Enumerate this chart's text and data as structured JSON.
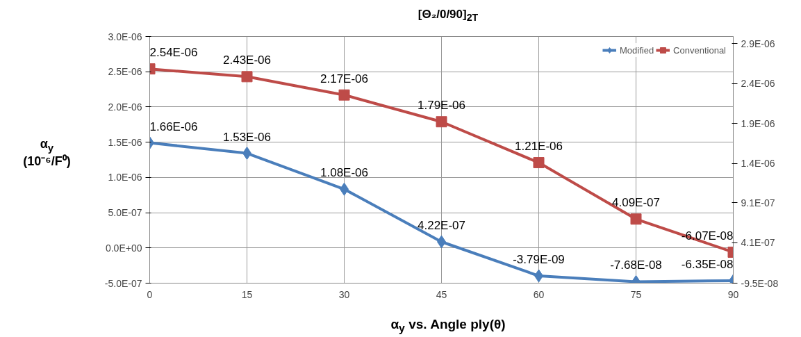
{
  "chart_data": {
    "type": "line",
    "title": "[Θ₂/0/90]$_{2T}$",
    "xlabel": "α$_{y}$ vs. Angle ply(θ)",
    "ylabel": "α$_{y}$\n(10⁻⁶/F⁰)",
    "x": [
      0,
      15,
      30,
      45,
      60,
      75,
      90
    ],
    "xlim": [
      0,
      90
    ],
    "xticks": [
      0,
      15,
      30,
      45,
      60,
      75,
      90
    ],
    "ylim": [
      -5e-07,
      3e-06
    ],
    "yticks": [
      {
        "value": -5e-07,
        "label": "-5.0E-07"
      },
      {
        "value": 0,
        "label": "0.0E+00"
      },
      {
        "value": 5e-07,
        "label": "5.0E-07"
      },
      {
        "value": 1e-06,
        "label": "1.0E-06"
      },
      {
        "value": 1.5e-06,
        "label": "1.5E-06"
      },
      {
        "value": 2e-06,
        "label": "2.0E-06"
      },
      {
        "value": 2.5e-06,
        "label": "2.5E-06"
      },
      {
        "value": 3e-06,
        "label": "3.0E-06"
      }
    ],
    "y2lim": [
      -9.5e-08,
      2.99e-06
    ],
    "y2ticks": [
      {
        "value": -9.5e-08,
        "label": "-9.5E-08"
      },
      {
        "value": 4.1e-07,
        "label": "4.1E-07"
      },
      {
        "value": 9.1e-07,
        "label": "9.1E-07"
      },
      {
        "value": 1.4e-06,
        "label": "1.4E-06"
      },
      {
        "value": 1.9e-06,
        "label": "1.9E-06"
      },
      {
        "value": 2.4e-06,
        "label": "2.4E-06"
      },
      {
        "value": 2.9e-06,
        "label": "2.9E-06"
      }
    ],
    "series": [
      {
        "name": "Modified",
        "color": "#4a7ebb",
        "axis": "y2",
        "marker": "diamond",
        "values": [
          1.66e-06,
          1.53e-06,
          1.08e-06,
          4.22e-07,
          -3.79e-09,
          -7.68e-08,
          -6.35e-08
        ],
        "value_labels": [
          "1.66E-06",
          "1.53E-06",
          "1.08E-06",
          "4.22E-07",
          "-3.79E-09",
          "-7.68E-08",
          "-6.35E-08"
        ]
      },
      {
        "name": "Conventional",
        "color": "#be4b48",
        "marker": "square",
        "values": [
          2.54e-06,
          2.43e-06,
          2.17e-06,
          1.79e-06,
          1.21e-06,
          4.09e-07,
          -6.07e-08
        ],
        "value_labels": [
          "2.54E-06",
          "2.43E-06",
          "2.17E-06",
          "1.79E-06",
          "1.21E-06",
          "4.09E-07",
          "-6.07E-08"
        ]
      }
    ],
    "grid": true,
    "legend": "top right",
    "line_style": "solid"
  }
}
